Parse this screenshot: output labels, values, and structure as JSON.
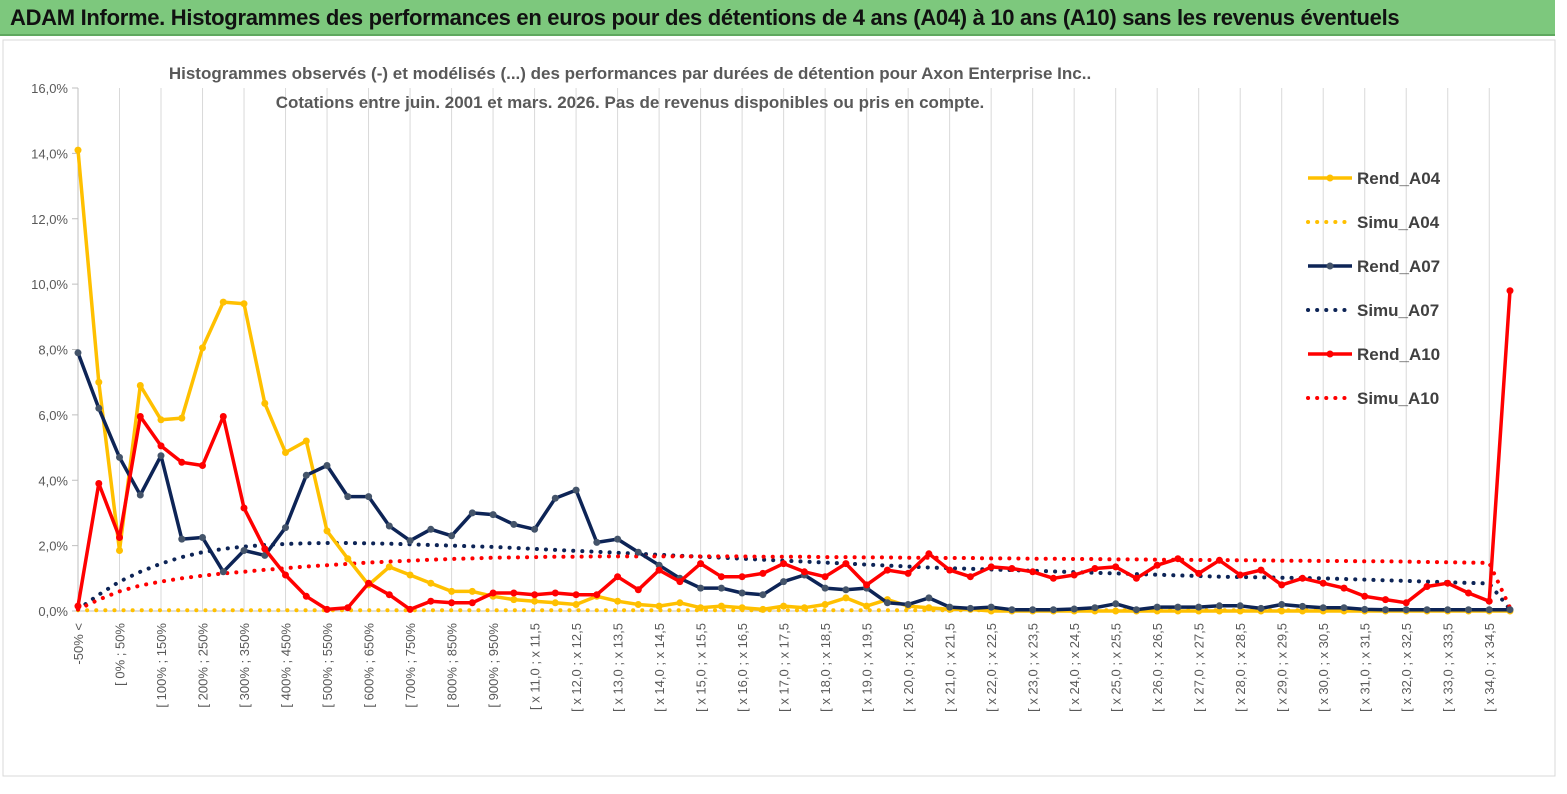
{
  "banner": {
    "title": "ADAM Informe. Histogrammes des performances en euros pour des détentions de 4 ans (A04) à 10 ans (A10) sans les revenus éventuels",
    "background": "#7dc87d"
  },
  "chart_data": {
    "type": "line",
    "title_line1": "Histogrammes observés (-) et modélisés (...) des performances par durées de détention pour Axon Enterprise Inc..",
    "title_line2": "Cotations entre juin. 2001 et mars. 2026.  Pas de revenus disponibles ou pris en compte.",
    "ylim": [
      0,
      16
    ],
    "yticks": [
      0,
      2,
      4,
      6,
      8,
      10,
      12,
      14,
      16
    ],
    "ytick_labels": [
      "0,0%",
      "2,0%",
      "4,0%",
      "6,0%",
      "8,0%",
      "10,0%",
      "12,0%",
      "14,0%",
      "16,0%"
    ],
    "n_points": 70,
    "x_tick_labels": [
      "-50% <",
      "[ 0% ; 50%",
      "[ 100% ; 150%",
      "[ 200% ; 250%",
      "[ 300% ; 350%",
      "[ 400% ; 450%",
      "[ 500% ; 550%",
      "[ 600% ; 650%",
      "[ 700% ; 750%",
      "[ 800% ; 850%",
      "[ 900% ; 950%",
      "[ x 11,0 ; x 11,5",
      "[ x 12,0 ; x 12,5",
      "[ x 13,0 ; x 13,5",
      "[ x 14,0 ; x 14,5",
      "[ x 15,0 ; x 15,5",
      "[ x 16,0 ; x 16,5",
      "[ x 17,0 ; x 17,5",
      "[ x 18,0 ; x 18,5",
      "[ x 19,0 ; x 19,5",
      "[ x 20,0 ; x 20,5",
      "[ x 21,0 ; x 21,5",
      "[ x 22,0 ; x 22,5",
      "[ x 23,0 ; x 23,5",
      "[ x 24,0 ; x 24,5",
      "[ x 25,0 ; x 25,5",
      "[ x 26,0 ; x 26,5",
      "[ x 27,0 ; x 27,5",
      "[ x 28,0 ; x 28,5",
      "[ x 29,0 ; x 29,5",
      "[ x 30,0 ; x 30,5",
      "[ x 31,0 ; x 31,5",
      "[ x 32,0 ; x 32,5",
      "[ x 33,0 ; x 33,5",
      "[ x 34,0 ; x 34,5"
    ],
    "series": [
      {
        "name": "Rend_A04",
        "style": "solid",
        "color": "#ffc000",
        "markers": true,
        "values": [
          14.1,
          7.0,
          1.85,
          6.9,
          5.85,
          5.9,
          8.05,
          9.45,
          9.4,
          6.35,
          4.85,
          5.2,
          2.45,
          1.6,
          0.8,
          1.35,
          1.1,
          0.85,
          0.6,
          0.6,
          0.45,
          0.35,
          0.3,
          0.25,
          0.2,
          0.45,
          0.3,
          0.2,
          0.15,
          0.25,
          0.1,
          0.15,
          0.1,
          0.05,
          0.15,
          0.1,
          0.2,
          0.4,
          0.15,
          0.35,
          0.15,
          0.1,
          0.05,
          0.05,
          0.0,
          0.0,
          0.0,
          0.0,
          0.0,
          0.0,
          0.0,
          0.0,
          0.0,
          0.0,
          0.0,
          0.0,
          0.0,
          0.0,
          0.0,
          0.0,
          0.0,
          0.0,
          0.0,
          0.0,
          0.0,
          0.0,
          0.0,
          0.0,
          0.0,
          0.0
        ]
      },
      {
        "name": "Simu_A04",
        "style": "dotted",
        "color": "#ffc000",
        "markers": false,
        "values": [
          0.02,
          0.02,
          0.02,
          0.02,
          0.02,
          0.02,
          0.02,
          0.02,
          0.02,
          0.02,
          0.02,
          0.02,
          0.02,
          0.02,
          0.02,
          0.02,
          0.02,
          0.02,
          0.02,
          0.02,
          0.02,
          0.02,
          0.02,
          0.02,
          0.02,
          0.02,
          0.02,
          0.02,
          0.02,
          0.02,
          0.02,
          0.02,
          0.02,
          0.02,
          0.02,
          0.02,
          0.02,
          0.02,
          0.02,
          0.02,
          0.02,
          0.02,
          0.02,
          0.02,
          0.02,
          0.02,
          0.02,
          0.02,
          0.02,
          0.02,
          0.02,
          0.02,
          0.02,
          0.02,
          0.02,
          0.02,
          0.02,
          0.02,
          0.02,
          0.02,
          0.02,
          0.02,
          0.02,
          0.02,
          0.02,
          0.02,
          0.02,
          0.02,
          0.02,
          0.02
        ]
      },
      {
        "name": "Rend_A07",
        "style": "solid",
        "color": "#0d2456",
        "markers": true,
        "values": [
          7.9,
          6.2,
          4.7,
          3.55,
          4.75,
          2.2,
          2.25,
          1.2,
          1.85,
          1.7,
          2.55,
          4.15,
          4.45,
          3.5,
          3.5,
          2.6,
          2.15,
          2.5,
          2.3,
          3.0,
          2.95,
          2.65,
          2.5,
          3.45,
          3.7,
          2.1,
          2.2,
          1.8,
          1.4,
          1.0,
          0.7,
          0.7,
          0.55,
          0.5,
          0.9,
          1.1,
          0.7,
          0.65,
          0.7,
          0.25,
          0.2,
          0.4,
          0.12,
          0.08,
          0.12,
          0.04,
          0.04,
          0.04,
          0.06,
          0.1,
          0.22,
          0.04,
          0.12,
          0.12,
          0.12,
          0.16,
          0.16,
          0.08,
          0.2,
          0.14,
          0.1,
          0.1,
          0.05,
          0.04,
          0.04,
          0.04,
          0.04,
          0.04,
          0.04,
          0.04
        ]
      },
      {
        "name": "Simu_A07",
        "style": "dotted",
        "color": "#0d2456",
        "markers": false,
        "values": [
          0.05,
          0.5,
          0.9,
          1.2,
          1.45,
          1.65,
          1.8,
          1.9,
          1.97,
          2.02,
          2.05,
          2.07,
          2.08,
          2.08,
          2.07,
          2.06,
          2.04,
          2.02,
          2.0,
          1.98,
          1.96,
          1.93,
          1.9,
          1.87,
          1.84,
          1.81,
          1.78,
          1.75,
          1.72,
          1.69,
          1.66,
          1.63,
          1.6,
          1.57,
          1.54,
          1.51,
          1.48,
          1.45,
          1.42,
          1.39,
          1.36,
          1.33,
          1.31,
          1.29,
          1.27,
          1.25,
          1.23,
          1.21,
          1.19,
          1.17,
          1.15,
          1.13,
          1.11,
          1.09,
          1.07,
          1.05,
          1.04,
          1.03,
          1.02,
          1.01,
          1.0,
          0.98,
          0.96,
          0.94,
          0.92,
          0.9,
          0.88,
          0.86,
          0.84,
          0.05
        ]
      },
      {
        "name": "Rend_A10",
        "style": "solid",
        "color": "#ff0000",
        "markers": true,
        "values": [
          0.15,
          3.9,
          2.25,
          5.95,
          5.05,
          4.55,
          4.45,
          5.95,
          3.15,
          1.9,
          1.1,
          0.45,
          0.05,
          0.1,
          0.85,
          0.5,
          0.05,
          0.3,
          0.25,
          0.25,
          0.55,
          0.55,
          0.5,
          0.55,
          0.5,
          0.5,
          1.05,
          0.65,
          1.25,
          0.9,
          1.45,
          1.05,
          1.05,
          1.15,
          1.45,
          1.2,
          1.05,
          1.45,
          0.8,
          1.25,
          1.15,
          1.75,
          1.25,
          1.05,
          1.35,
          1.3,
          1.2,
          1.0,
          1.1,
          1.3,
          1.35,
          1.0,
          1.4,
          1.6,
          1.15,
          1.55,
          1.1,
          1.25,
          0.8,
          1.0,
          0.85,
          0.7,
          0.45,
          0.35,
          0.25,
          0.75,
          0.85,
          0.55,
          0.3,
          9.8
        ]
      },
      {
        "name": "Simu_A10",
        "style": "dotted",
        "color": "#ff0000",
        "markers": false,
        "values": [
          0.05,
          0.35,
          0.6,
          0.78,
          0.9,
          1.0,
          1.08,
          1.15,
          1.2,
          1.26,
          1.31,
          1.36,
          1.4,
          1.44,
          1.48,
          1.51,
          1.54,
          1.57,
          1.59,
          1.61,
          1.63,
          1.64,
          1.65,
          1.66,
          1.66,
          1.67,
          1.67,
          1.67,
          1.67,
          1.67,
          1.67,
          1.67,
          1.67,
          1.66,
          1.66,
          1.66,
          1.65,
          1.65,
          1.64,
          1.64,
          1.63,
          1.63,
          1.62,
          1.62,
          1.61,
          1.61,
          1.6,
          1.6,
          1.59,
          1.59,
          1.58,
          1.58,
          1.57,
          1.57,
          1.56,
          1.56,
          1.55,
          1.55,
          1.54,
          1.54,
          1.53,
          1.53,
          1.52,
          1.52,
          1.51,
          1.5,
          1.49,
          1.48,
          1.47,
          0.1
        ]
      }
    ],
    "legend": [
      "Rend_A04",
      "Simu_A04",
      "Rend_A07",
      "Simu_A07",
      "Rend_A10",
      "Simu_A10"
    ],
    "legend_position": "right",
    "grid": true
  }
}
